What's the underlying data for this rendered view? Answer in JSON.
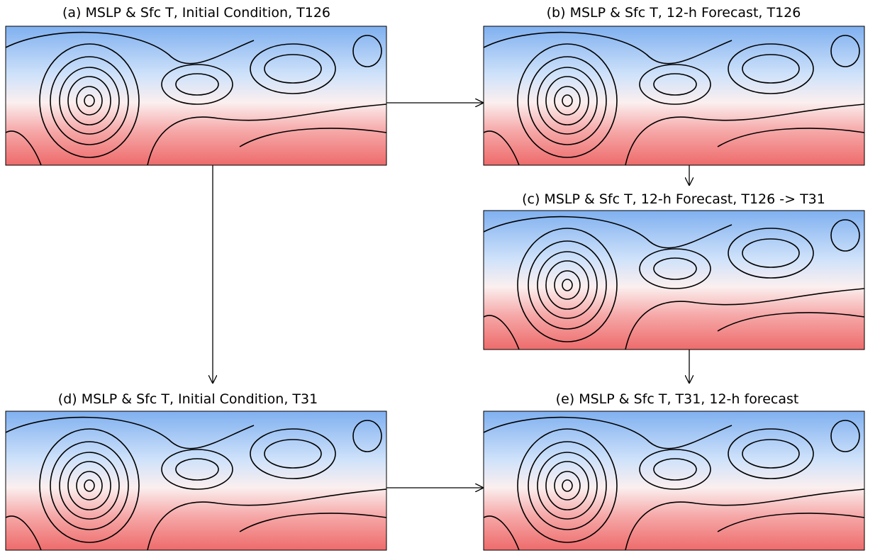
{
  "panels": [
    {
      "title": "(a) MSLP & Sfc T, Initial Condition, T126"
    },
    {
      "title": "(b) MSLP & Sfc T, 12-h Forecast, T126"
    },
    {
      "title": "(c) MSLP & Sfc T, 12-h Forecast, T126 -> T31"
    },
    {
      "title": "(d) MSLP & Sfc T, Initial Condition, T31"
    },
    {
      "title": "(e) MSLP & Sfc T, T31, 12-h forecast"
    }
  ]
}
